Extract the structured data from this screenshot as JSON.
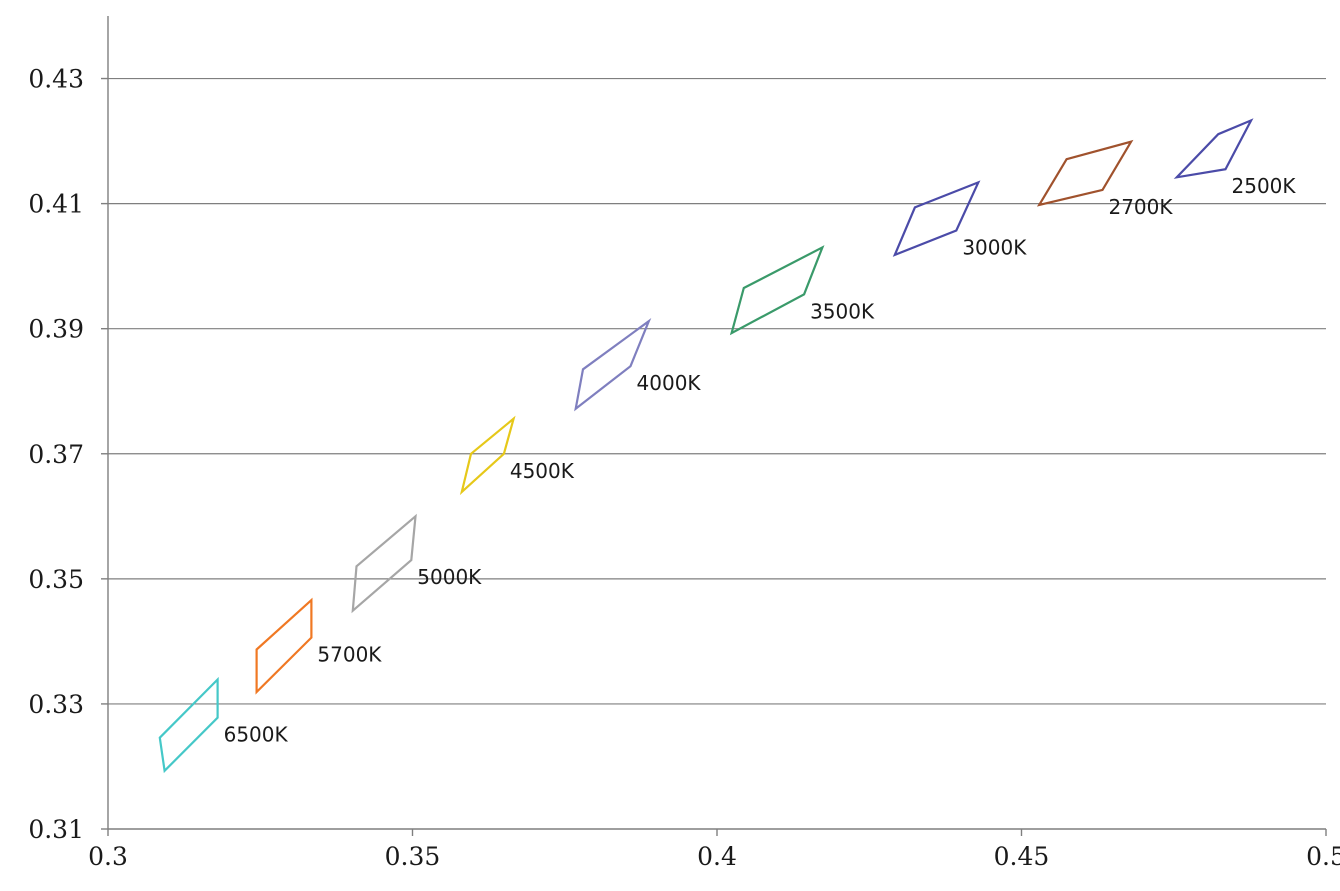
{
  "chart_data": {
    "type": "line",
    "title": "",
    "xlabel": "",
    "ylabel": "",
    "xlim": [
      0.3,
      0.5
    ],
    "ylim": [
      0.31,
      0.44
    ],
    "xticks": [
      0.3,
      0.35,
      0.4,
      0.45,
      0.5
    ],
    "yticks": [
      0.31,
      0.33,
      0.35,
      0.37,
      0.39,
      0.41,
      0.43
    ],
    "xtick_labels": [
      "0.3",
      "0.35",
      "0.4",
      "0.45",
      "0.5"
    ],
    "ytick_labels": [
      "0.31",
      "0.33",
      "0.35",
      "0.37",
      "0.39",
      "0.41",
      "0.43"
    ],
    "grid": "horizontal",
    "legend": "none",
    "series": [
      {
        "label": "2500K",
        "color": "#4b4ba8",
        "points": [
          [
            0.4823,
            0.4211
          ],
          [
            0.4877,
            0.4233
          ],
          [
            0.4835,
            0.4155
          ],
          [
            0.4755,
            0.4142
          ]
        ]
      },
      {
        "label": "2700K",
        "color": "#a0522d",
        "points": [
          [
            0.4574,
            0.4171
          ],
          [
            0.468,
            0.4199
          ],
          [
            0.4633,
            0.4122
          ],
          [
            0.4529,
            0.4098
          ]
        ]
      },
      {
        "label": "3000K",
        "color": "#4b4ba8",
        "points": [
          [
            0.4325,
            0.4094
          ],
          [
            0.4429,
            0.4134
          ],
          [
            0.4393,
            0.4057
          ],
          [
            0.4292,
            0.4018
          ]
        ]
      },
      {
        "label": "3500K",
        "color": "#3a9a6a",
        "points": [
          [
            0.4044,
            0.3965
          ],
          [
            0.4173,
            0.403
          ],
          [
            0.4143,
            0.3955
          ],
          [
            0.4024,
            0.3893
          ]
        ]
      },
      {
        "label": "4000K",
        "color": "#7f7fbf",
        "points": [
          [
            0.378,
            0.3835
          ],
          [
            0.3888,
            0.3912
          ],
          [
            0.3858,
            0.384
          ],
          [
            0.3768,
            0.3772
          ]
        ]
      },
      {
        "label": "4500K",
        "color": "#e6c819",
        "points": [
          [
            0.3596,
            0.37
          ],
          [
            0.3666,
            0.3756
          ],
          [
            0.365,
            0.37
          ],
          [
            0.3581,
            0.3639
          ]
        ]
      },
      {
        "label": "5000K",
        "color": "#a6a6a6",
        "points": [
          [
            0.3408,
            0.352
          ],
          [
            0.3505,
            0.36
          ],
          [
            0.3498,
            0.353
          ],
          [
            0.3402,
            0.3449
          ]
        ]
      },
      {
        "label": "5700K",
        "color": "#f07823",
        "points": [
          [
            0.3244,
            0.3387
          ],
          [
            0.3334,
            0.3466
          ],
          [
            0.3334,
            0.3406
          ],
          [
            0.3244,
            0.3319
          ]
        ]
      },
      {
        "label": "6500K",
        "color": "#45c8c8",
        "points": [
          [
            0.3085,
            0.3246
          ],
          [
            0.318,
            0.3339
          ],
          [
            0.318,
            0.3278
          ],
          [
            0.3093,
            0.3193
          ]
        ]
      }
    ]
  }
}
